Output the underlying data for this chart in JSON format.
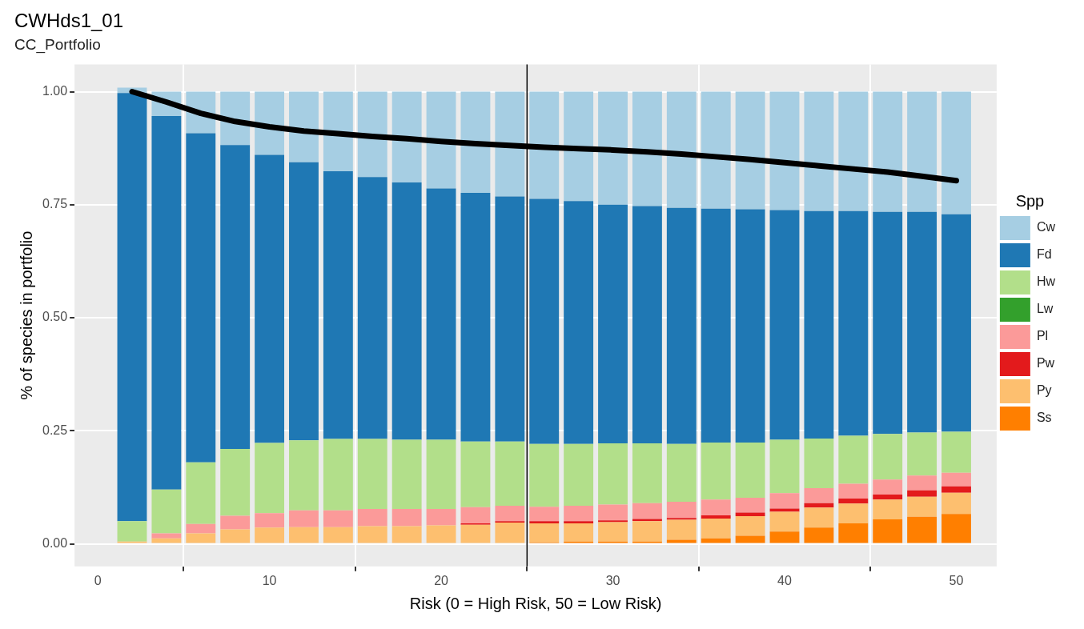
{
  "chart_data": {
    "type": "bar",
    "title": "CWHds1_01",
    "subtitle": "CC_Portfolio",
    "xlabel": "Risk (0 = High Risk, 50 = Low Risk)",
    "ylabel": "% of species in portfolio",
    "legend_title": "Spp",
    "legend": "right",
    "stacked": true,
    "grid": true,
    "x": [
      2,
      4,
      6,
      8,
      10,
      12,
      14,
      16,
      18,
      20,
      22,
      24,
      26,
      28,
      30,
      32,
      34,
      36,
      38,
      40,
      42,
      44,
      46,
      48,
      50
    ],
    "xlim": [
      -1.35,
      52.35
    ],
    "xticks": [
      0,
      10,
      20,
      30,
      40,
      50
    ],
    "ylim": [
      -0.05,
      1.06
    ],
    "yticks": [
      {
        "value": 0,
        "label": "0.00"
      },
      {
        "value": 0.25,
        "label": "0.25"
      },
      {
        "value": 0.5,
        "label": "0.50"
      },
      {
        "value": 0.75,
        "label": "0.75"
      },
      {
        "value": 1,
        "label": "1.00"
      }
    ],
    "series": [
      {
        "name": "Ss",
        "color": "#ff7f00",
        "values": [
          0,
          0,
          0,
          0,
          0,
          0,
          0,
          0,
          0,
          0,
          0.002,
          0.002,
          0.003,
          0.005,
          0.005,
          0.005,
          0.009,
          0.012,
          0.018,
          0.027,
          0.036,
          0.045,
          0.054,
          0.06,
          0.066
        ]
      },
      {
        "name": "Py",
        "color": "#fdbf6f",
        "values": [
          0.005,
          0.012,
          0.023,
          0.032,
          0.036,
          0.037,
          0.037,
          0.039,
          0.039,
          0.041,
          0.04,
          0.045,
          0.042,
          0.04,
          0.043,
          0.045,
          0.044,
          0.044,
          0.043,
          0.044,
          0.044,
          0.044,
          0.044,
          0.044,
          0.047
        ]
      },
      {
        "name": "Pw",
        "color": "#e31a1c",
        "values": [
          0,
          0,
          0,
          0,
          0,
          0,
          0,
          0,
          0,
          0,
          0.003,
          0.003,
          0.005,
          0.005,
          0.004,
          0.005,
          0.004,
          0.007,
          0.008,
          0.007,
          0.01,
          0.011,
          0.011,
          0.014,
          0.014
        ]
      },
      {
        "name": "Pl",
        "color": "#fb9a99",
        "values": [
          0,
          0.011,
          0.021,
          0.03,
          0.032,
          0.037,
          0.037,
          0.038,
          0.038,
          0.036,
          0.036,
          0.034,
          0.032,
          0.034,
          0.035,
          0.035,
          0.036,
          0.035,
          0.033,
          0.034,
          0.033,
          0.033,
          0.033,
          0.033,
          0.03
        ]
      },
      {
        "name": "Lw",
        "color": "#33a02c",
        "values": [
          0,
          0,
          0,
          0,
          0,
          0,
          0,
          0,
          0,
          0,
          0,
          0,
          0,
          0,
          0,
          0,
          0,
          0,
          0,
          0,
          0,
          0,
          0,
          0,
          0
        ]
      },
      {
        "name": "Hw",
        "color": "#b2df8a",
        "values": [
          0.045,
          0.097,
          0.136,
          0.148,
          0.155,
          0.155,
          0.158,
          0.155,
          0.153,
          0.153,
          0.145,
          0.142,
          0.139,
          0.137,
          0.135,
          0.132,
          0.128,
          0.126,
          0.122,
          0.118,
          0.11,
          0.106,
          0.101,
          0.095,
          0.091
        ]
      },
      {
        "name": "Fd",
        "color": "#1f78b4",
        "values": [
          0.947,
          0.826,
          0.728,
          0.672,
          0.637,
          0.615,
          0.592,
          0.579,
          0.569,
          0.556,
          0.55,
          0.542,
          0.542,
          0.537,
          0.528,
          0.525,
          0.522,
          0.517,
          0.516,
          0.508,
          0.503,
          0.497,
          0.491,
          0.488,
          0.481
        ]
      },
      {
        "name": "Cw",
        "color": "#a6cee3",
        "values": [
          0.012,
          0.054,
          0.092,
          0.118,
          0.14,
          0.156,
          0.176,
          0.189,
          0.201,
          0.214,
          0.224,
          0.232,
          0.237,
          0.242,
          0.25,
          0.253,
          0.257,
          0.259,
          0.26,
          0.262,
          0.264,
          0.264,
          0.266,
          0.266,
          0.271
        ]
      },
      {
        "type": "line",
        "color": "#000000",
        "marker": "none",
        "values": [
          1.0,
          0.977,
          0.952,
          0.934,
          0.922,
          0.913,
          0.907,
          0.901,
          0.896,
          0.89,
          0.885,
          0.881,
          0.877,
          0.874,
          0.871,
          0.867,
          0.862,
          0.856,
          0.85,
          0.843,
          0.836,
          0.829,
          0.822,
          0.813,
          0.803
        ]
      }
    ],
    "ref_lines": [
      {
        "axis": "x",
        "value": 25,
        "color": "#000000"
      }
    ]
  }
}
